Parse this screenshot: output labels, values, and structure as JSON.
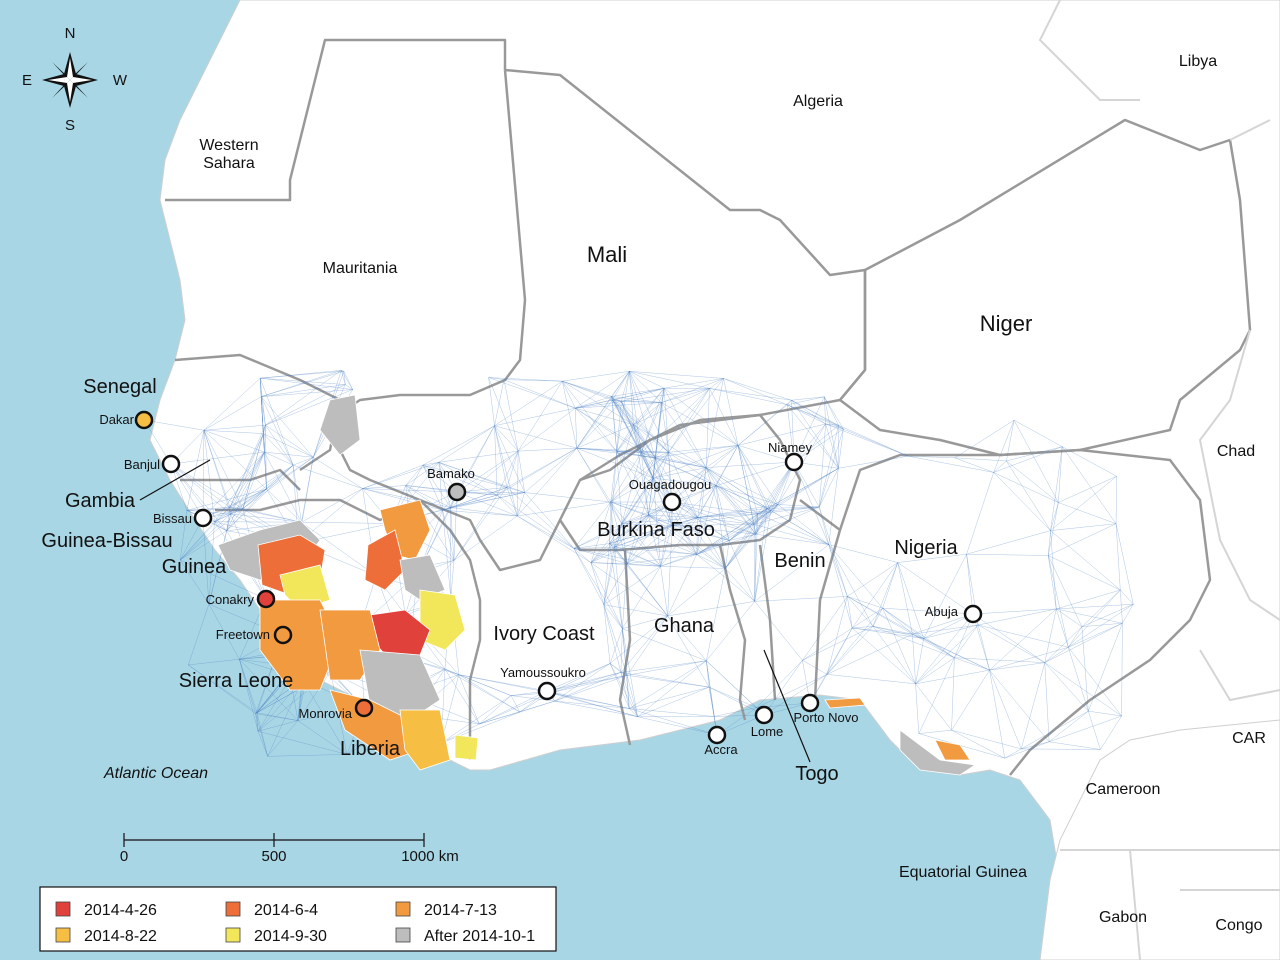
{
  "compass": {
    "n": "N",
    "s": "S",
    "e": "E",
    "w": "W"
  },
  "countries": {
    "western_sahara": [
      "Western",
      "Sahara"
    ],
    "mauritania": "Mauritania",
    "algeria": "Algeria",
    "libya": "Libya",
    "mali": "Mali",
    "niger": "Niger",
    "chad": "Chad",
    "senegal": "Senegal",
    "gambia": "Gambia",
    "guinea_bissau": "Guinea-Bissau",
    "guinea": "Guinea",
    "sierra_leone": "Sierra Leone",
    "liberia": "Liberia",
    "ivory_coast": "Ivory Coast",
    "burkina_faso": "Burkina Faso",
    "ghana": "Ghana",
    "togo": "Togo",
    "benin": "Benin",
    "nigeria": "Nigeria",
    "cameroon": "Cameroon",
    "car": "CAR",
    "equatorial_guinea": "Equatorial Guinea",
    "gabon": "Gabon",
    "congo": "Congo"
  },
  "ocean": "Atlantic Ocean",
  "cities": [
    {
      "name": "Dakar",
      "status": "2014-8-22"
    },
    {
      "name": "Banjul",
      "status": "none"
    },
    {
      "name": "Bissau",
      "status": "none"
    },
    {
      "name": "Conakry",
      "status": "2014-4-26"
    },
    {
      "name": "Freetown",
      "status": "2014-7-13"
    },
    {
      "name": "Monrovia",
      "status": "2014-6-4"
    },
    {
      "name": "Bamako",
      "status": "After 2014-10-1"
    },
    {
      "name": "Yamoussoukro",
      "status": "none"
    },
    {
      "name": "Ouagadougou",
      "status": "none"
    },
    {
      "name": "Niamey",
      "status": "none"
    },
    {
      "name": "Accra",
      "status": "none"
    },
    {
      "name": "Lome",
      "status": "none"
    },
    {
      "name": "Porto Novo",
      "status": "none"
    },
    {
      "name": "Abuja",
      "status": "none"
    }
  ],
  "scale_bar": {
    "ticks": [
      "0",
      "500",
      "1000 km"
    ]
  },
  "legend": [
    {
      "label": "2014-4-26",
      "color": "#e0413a"
    },
    {
      "label": "2014-6-4",
      "color": "#ee6e3a"
    },
    {
      "label": "2014-7-13",
      "color": "#f29a3f"
    },
    {
      "label": "2014-8-22",
      "color": "#f6bf44"
    },
    {
      "label": "2014-9-30",
      "color": "#f2e65a"
    },
    {
      "label": "After 2014-10-1",
      "color": "#bdbdbd"
    }
  ],
  "colors": {
    "sea": "#a9d6e5",
    "land": "#ffffff",
    "border": "#9a9a9a",
    "network": "#4a7fc0"
  }
}
